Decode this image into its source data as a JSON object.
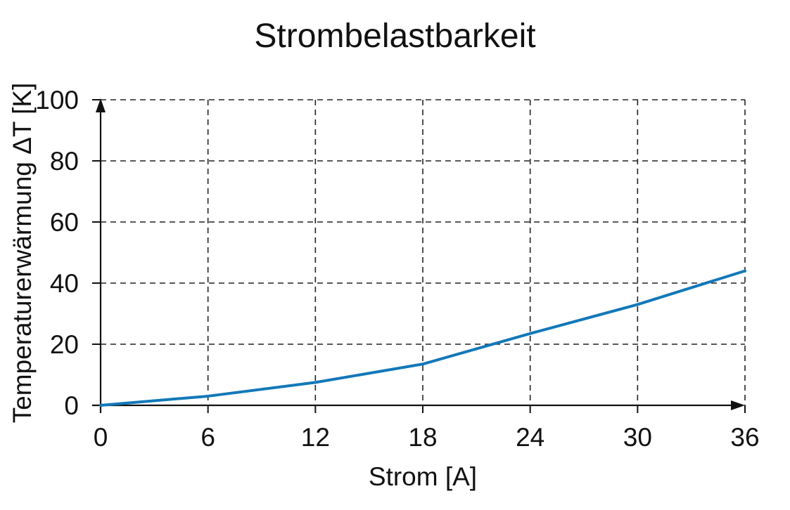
{
  "chart_data": {
    "type": "line",
    "title": "Strombelastbarkeit",
    "xlabel": "Strom [A]",
    "ylabel": "Temperaturerwärmung ΔT [K]",
    "xlim": [
      0,
      36
    ],
    "ylim": [
      0,
      100
    ],
    "x_ticks": [
      0,
      6,
      12,
      18,
      24,
      30,
      36
    ],
    "y_ticks": [
      0,
      20,
      40,
      60,
      80,
      100
    ],
    "grid": true,
    "legend": false,
    "background_color": "#ffffff",
    "axis_color": "#111111",
    "grid_color": "#222222",
    "series": [
      {
        "name": "Temperaturerwärmung ΔT",
        "color": "#1278b9",
        "x": [
          0,
          6,
          12,
          18,
          24,
          30,
          36
        ],
        "y": [
          0,
          3,
          7.5,
          13.5,
          23.5,
          33,
          44
        ]
      }
    ]
  }
}
